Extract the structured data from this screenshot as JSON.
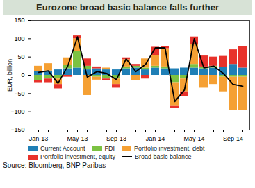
{
  "chart_data": {
    "type": "bar",
    "title": "Eurozone broad basic balance falls further",
    "source": "Source: Bloomberg, BNP Paribas",
    "ylabel": "EUR, billion",
    "stacked": true,
    "legend": "bottom",
    "categories": [
      "Jan-13",
      null,
      null,
      null,
      "May-13",
      null,
      null,
      null,
      "Sep-13",
      null,
      null,
      null,
      "Jan-14",
      null,
      null,
      null,
      "May-14",
      null,
      null,
      null,
      "Sep-14",
      null
    ],
    "ylim": [
      -150,
      150
    ],
    "yticks": [
      -150,
      -100,
      -50,
      0,
      50,
      100,
      150
    ],
    "series": [
      {
        "name": "Current Account",
        "type": "bar",
        "color": "#1f7fb6",
        "values": [
          10,
          12,
          15,
          18,
          20,
          15,
          18,
          15,
          15,
          18,
          20,
          15,
          20,
          18,
          18,
          20,
          20,
          18,
          20,
          22,
          30,
          20
        ]
      },
      {
        "name": "FDI",
        "type": "bar",
        "color": "#7cc242",
        "values": [
          -15,
          -10,
          -10,
          10,
          45,
          10,
          -5,
          -10,
          -10,
          5,
          5,
          5,
          5,
          5,
          -20,
          -10,
          10,
          5,
          5,
          -5,
          -5,
          -5
        ]
      },
      {
        "name": "Portfolio investment, debt",
        "type": "bar",
        "color": "#f5a033",
        "values": [
          15,
          20,
          -15,
          20,
          35,
          -55,
          -8,
          5,
          -15,
          20,
          -15,
          25,
          30,
          50,
          -65,
          -35,
          55,
          -35,
          -25,
          -40,
          -90,
          -90
        ]
      },
      {
        "name": "Portfolio investment, equity",
        "type": "bar",
        "color": "#e8322b",
        "values": [
          -5,
          -10,
          -12,
          -5,
          8,
          20,
          5,
          -5,
          -10,
          5,
          5,
          -10,
          22,
          5,
          -5,
          -12,
          20,
          30,
          25,
          30,
          40,
          58
        ]
      },
      {
        "name": "Broad basic balance",
        "type": "line",
        "color": "#000000",
        "values": [
          8,
          12,
          -22,
          25,
          105,
          -5,
          10,
          5,
          -12,
          45,
          10,
          30,
          75,
          75,
          -72,
          -40,
          100,
          20,
          25,
          5,
          -25,
          -30
        ]
      }
    ]
  }
}
